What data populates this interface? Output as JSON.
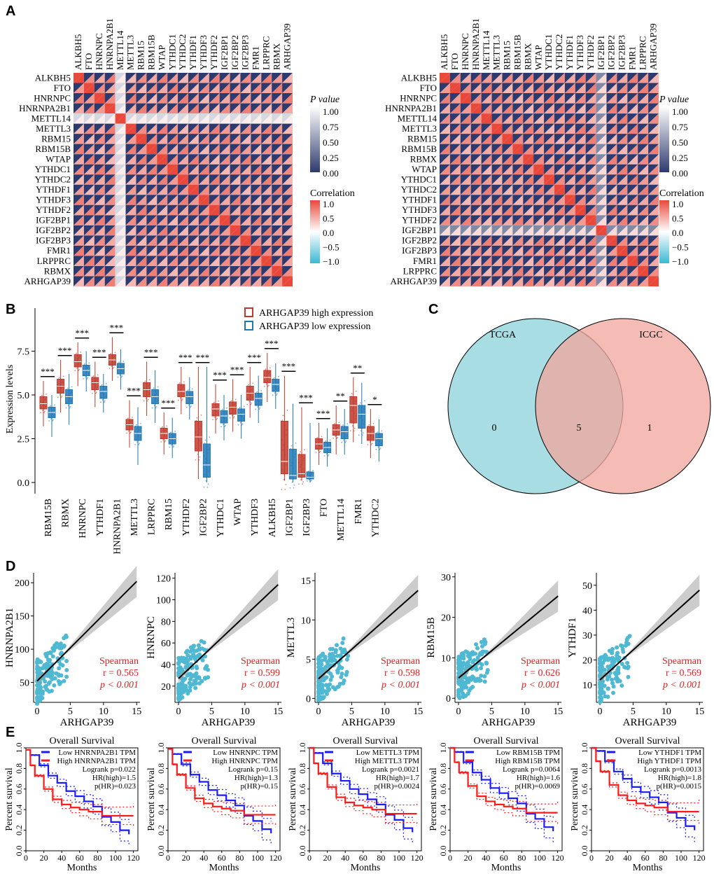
{
  "panel_labels": [
    "A",
    "B",
    "C",
    "D",
    "E"
  ],
  "chart_data": [
    {
      "type": "heatmap",
      "panel": "A-left",
      "genes": [
        "ALKBH5",
        "FTO",
        "HNRNPC",
        "HNRNPA2B1",
        "METTL14",
        "METTL3",
        "RBM15",
        "RBM15B",
        "WTAP",
        "YTHDC1",
        "YTHDC2",
        "YTHDF1",
        "YTHDF3",
        "YTHDF2",
        "IGF2BP1",
        "IGF2BP2",
        "IGF2BP3",
        "FMR1",
        "LRPPRC",
        "RBMX",
        "ARHGAP39"
      ],
      "default_p": 0.0,
      "default_cor": 0.55,
      "weak_gene": "METTL14",
      "weak_p": 0.8,
      "weak_cor": 0.1
    },
    {
      "type": "heatmap",
      "panel": "A-right",
      "genes": [
        "ALKBH5",
        "FTO",
        "HNRNPC",
        "HNRNPA2B1",
        "METTL14",
        "METTL3",
        "RBM15",
        "RBM15B",
        "RBMX",
        "WTAP",
        "YTHDC1",
        "YTHDC2",
        "YTHDF1",
        "YTHDF3",
        "YTHDF2",
        "IGF2BP1",
        "IGF2BP2",
        "IGF2BP3",
        "FMR1",
        "LRPPRC",
        "ARHGAP39"
      ],
      "default_p": 0.0,
      "default_cor": 0.55,
      "weak_gene": "IGF2BP1",
      "weak_p": 0.4,
      "weak_cor": 0.2
    },
    {
      "type": "legend",
      "pvalue_title": "P value",
      "pvalue_ticks": [
        "1.00",
        "0.75",
        "0.50",
        "0.25",
        "0.00"
      ],
      "cor_title": "Correlation",
      "cor_ticks": [
        "1.0",
        "0.5",
        "0.0",
        "−0.5",
        "−1.0"
      ],
      "colors": {
        "p0": "#2d3a6e",
        "p1": "#ffffff",
        "cor_pos": "#e8493b",
        "cor_neg": "#3bb8d3"
      }
    },
    {
      "type": "box",
      "panel": "B",
      "ylabel": "Expression levels",
      "yticks": [
        "0.0",
        "2.5",
        "5.0",
        "7.5"
      ],
      "ylim": [
        0,
        9
      ],
      "legend": [
        "ARHGAP39 high expression",
        "ARHGAP39 low expression"
      ],
      "colors": [
        "#c0392b",
        "#1f77b4"
      ],
      "categories": [
        "RBM15B",
        "RBMX",
        "HNRNPC",
        "YTHDF1",
        "HNRNPA2B1",
        "METTL3",
        "LRPPRC",
        "RBM15",
        "YTHDF2",
        "IGF2BP2",
        "YTHDC1",
        "WTAP",
        "YTHDF3",
        "ALKBH5",
        "IGF2BP1",
        "IGF2BP3",
        "FTO",
        "METTL14",
        "FMR1",
        "YTHDC2"
      ],
      "high": [
        [
          3.2,
          4.2,
          4.5,
          4.9,
          5.8
        ],
        [
          4.0,
          5.1,
          5.5,
          5.9,
          7.0
        ],
        [
          5.5,
          6.6,
          6.9,
          7.3,
          8.0
        ],
        [
          4.3,
          5.3,
          5.7,
          6.0,
          6.9
        ],
        [
          5.8,
          6.7,
          7.0,
          7.3,
          8.3
        ],
        [
          2.0,
          3.0,
          3.3,
          3.6,
          4.7
        ],
        [
          3.8,
          4.9,
          5.3,
          5.7,
          6.9
        ],
        [
          1.6,
          2.5,
          2.8,
          3.1,
          4.0
        ],
        [
          3.9,
          4.9,
          5.2,
          5.6,
          6.6
        ],
        [
          0.2,
          1.8,
          2.6,
          3.5,
          6.6
        ],
        [
          2.8,
          3.8,
          4.2,
          4.5,
          5.6
        ],
        [
          2.9,
          3.9,
          4.3,
          4.6,
          5.9
        ],
        [
          3.7,
          4.7,
          5.1,
          5.5,
          6.6
        ],
        [
          4.6,
          5.7,
          6.0,
          6.4,
          7.4
        ],
        [
          0.1,
          0.5,
          1.2,
          3.5,
          6.1
        ],
        [
          0.1,
          0.3,
          0.5,
          1.6,
          4.3
        ],
        [
          1.0,
          1.9,
          2.2,
          2.5,
          3.4
        ],
        [
          1.6,
          2.7,
          3.0,
          3.3,
          4.4
        ],
        [
          2.3,
          3.4,
          4.4,
          4.9,
          6.0
        ],
        [
          1.4,
          2.4,
          2.8,
          3.2,
          4.2
        ]
      ],
      "low": [
        [
          2.6,
          3.7,
          4.0,
          4.3,
          5.0
        ],
        [
          3.3,
          4.5,
          4.9,
          5.3,
          6.2
        ],
        [
          5.2,
          6.1,
          6.4,
          6.7,
          7.5
        ],
        [
          4.0,
          4.8,
          5.2,
          5.5,
          6.2
        ],
        [
          5.3,
          6.2,
          6.5,
          6.8,
          7.6
        ],
        [
          1.0,
          2.4,
          2.8,
          3.2,
          4.3
        ],
        [
          3.4,
          4.5,
          4.9,
          5.3,
          6.4
        ],
        [
          1.4,
          2.2,
          2.5,
          2.8,
          3.7
        ],
        [
          3.6,
          4.5,
          4.9,
          5.2,
          6.0
        ],
        [
          0.0,
          0.3,
          1.0,
          2.2,
          6.6
        ],
        [
          2.4,
          3.4,
          3.8,
          4.1,
          5.0
        ],
        [
          2.5,
          3.5,
          3.9,
          4.2,
          5.0
        ],
        [
          3.4,
          4.4,
          4.8,
          5.1,
          6.1
        ],
        [
          4.2,
          5.2,
          5.6,
          5.9,
          6.8
        ],
        [
          0.0,
          0.2,
          0.4,
          1.9,
          4.5
        ],
        [
          0.0,
          0.2,
          0.3,
          0.6,
          3.4
        ],
        [
          0.9,
          1.7,
          2.0,
          2.3,
          3.1
        ],
        [
          1.6,
          2.5,
          2.9,
          3.2,
          4.2
        ],
        [
          2.2,
          3.1,
          3.9,
          4.4,
          5.7
        ],
        [
          1.2,
          2.1,
          2.5,
          2.8,
          3.6
        ]
      ],
      "significance": [
        "***",
        "***",
        "***",
        "***",
        "***",
        "***",
        "***",
        "***",
        "***",
        "***",
        "***",
        "***",
        "***",
        "***",
        "***",
        "***",
        "***",
        "**",
        "**",
        "*"
      ]
    },
    {
      "type": "venn",
      "panel": "C",
      "sets": [
        "TCGA",
        "ICGC"
      ],
      "only_a": "0",
      "both": "5",
      "only_b": "1",
      "colors": [
        "#a8dde3",
        "#f1a69d"
      ]
    },
    {
      "type": "scatter",
      "panel": "D",
      "xlabel": "ARHGAP39",
      "xticks": [
        "0",
        "5",
        "10",
        "15"
      ],
      "color": "#4fb8d3",
      "stat_label": "Spearman",
      "plots": [
        {
          "ylabel": "HNRNPA2B1",
          "yticks": [
            "50",
            "100",
            "150",
            "200"
          ],
          "ylim": [
            20,
            215
          ],
          "intercept": 52,
          "slope": 10,
          "r": "r = 0.565",
          "p": "p < 0.001"
        },
        {
          "ylabel": "HNRNPC",
          "yticks": [
            "20",
            "40",
            "60",
            "80",
            "100",
            "120"
          ],
          "ylim": [
            5,
            125
          ],
          "intercept": 27,
          "slope": 5.8,
          "r": "r = 0.599",
          "p": "p < 0.001"
        },
        {
          "ylabel": "METTL3",
          "yticks": [
            "0",
            "5",
            "10",
            "15"
          ],
          "ylim": [
            -0.5,
            16
          ],
          "intercept": 2.5,
          "slope": 0.75,
          "r": "r = 0.598",
          "p": "p < 0.001"
        },
        {
          "ylabel": "RBM15B",
          "yticks": [
            "0",
            "10",
            "20",
            "30"
          ],
          "ylim": [
            -1,
            31
          ],
          "intercept": 5,
          "slope": 1.35,
          "r": "r = 0.626",
          "p": "p < 0.001"
        },
        {
          "ylabel": "YTHDF1",
          "yticks": [
            "10",
            "20",
            "30",
            "40",
            "50"
          ],
          "ylim": [
            3,
            55
          ],
          "intercept": 12,
          "slope": 2.4,
          "r": "r = 0.569",
          "p": "p < 0.001"
        }
      ]
    },
    {
      "type": "line",
      "panel": "E",
      "title": "Overall Survival",
      "xlabel": "Months",
      "ylabel": "Percent survival",
      "xticks": [
        "0",
        "20",
        "40",
        "60",
        "80",
        "100",
        "120"
      ],
      "yticks": [
        "0.0",
        "0.2",
        "0.4",
        "0.6",
        "0.8",
        "1.0"
      ],
      "colors": [
        "#1a1aff",
        "#ff1a1a"
      ],
      "plots": [
        {
          "low": "Low HNRNPA2B1 TPM",
          "high": "High HNRNPA2B1 TPM",
          "logrank": "Logrank p=0.022",
          "hr": "HR(high)=1.5",
          "phr": "p(HR)=0.023"
        },
        {
          "low": "Low HNRNPC TPM",
          "high": "High HNRNPC TPM",
          "logrank": "Logrank p=0.15",
          "hr": "HR(high)=1.3",
          "phr": "p(HR)=0.15"
        },
        {
          "low": "Low METTL3 TPM",
          "high": "High METTL3 TPM",
          "logrank": "Logrank p=0.0021",
          "hr": "HR(high)=1.7",
          "phr": "p(HR)=0.0024"
        },
        {
          "low": "Low RBM15B TPM",
          "high": "High RBM15B TPM",
          "logrank": "Logrank p=0.0064",
          "hr": "HR(high)=1.6",
          "phr": "p(HR)=0.0069"
        },
        {
          "low": "Low YTHDF1 TPM",
          "high": "High YTHDF1 TPM",
          "logrank": "Logrank p=0.0013",
          "hr": "HR(high)=1.8",
          "phr": "p(HR)=0.0015"
        }
      ],
      "low_curve": [
        [
          0,
          1
        ],
        [
          5,
          0.95
        ],
        [
          15,
          0.85
        ],
        [
          25,
          0.75
        ],
        [
          35,
          0.68
        ],
        [
          45,
          0.6
        ],
        [
          55,
          0.55
        ],
        [
          65,
          0.5
        ],
        [
          75,
          0.45
        ],
        [
          85,
          0.35
        ],
        [
          95,
          0.3
        ],
        [
          105,
          0.22
        ],
        [
          115,
          0.18
        ]
      ],
      "high_curve": [
        [
          0,
          1
        ],
        [
          5,
          0.85
        ],
        [
          10,
          0.75
        ],
        [
          20,
          0.62
        ],
        [
          30,
          0.52
        ],
        [
          40,
          0.47
        ],
        [
          50,
          0.44
        ],
        [
          60,
          0.42
        ],
        [
          70,
          0.4
        ],
        [
          85,
          0.36
        ],
        [
          120,
          0.36
        ]
      ]
    }
  ]
}
